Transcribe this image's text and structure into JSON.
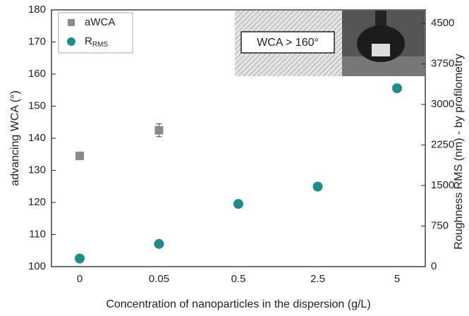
{
  "chart_data": {
    "type": "scatter",
    "x_label": "Concentration of nanoparticles in the dispersion (g/L)",
    "y_label": "advancing WCA (°)",
    "y2_label": "Roughness RMS (nm) - by profilometry",
    "annotation": "WCA > 160°",
    "categories": [
      "0",
      "0.05",
      "0.5",
      "2.5",
      "5"
    ],
    "ylim": [
      100,
      180
    ],
    "yticks": [
      100,
      110,
      120,
      130,
      140,
      150,
      160,
      170,
      180
    ],
    "y2lim": [
      0,
      4750
    ],
    "y2ticks": [
      0,
      750,
      1500,
      2250,
      3000,
      3750,
      4500
    ],
    "legend": "upper left",
    "series": [
      {
        "name": "aWCA",
        "color": "#8a8a8a",
        "marker": "square",
        "values": [
          134.5,
          142.5,
          null,
          null,
          null
        ],
        "errors": [
          1,
          2,
          null,
          null,
          null
        ]
      },
      {
        "name": "R",
        "name_sub": "RMS",
        "color": "#1f8c8c",
        "marker": "circle",
        "axis": "y2",
        "values": [
          150,
          420,
          1160,
          1480,
          3300
        ]
      }
    ]
  }
}
